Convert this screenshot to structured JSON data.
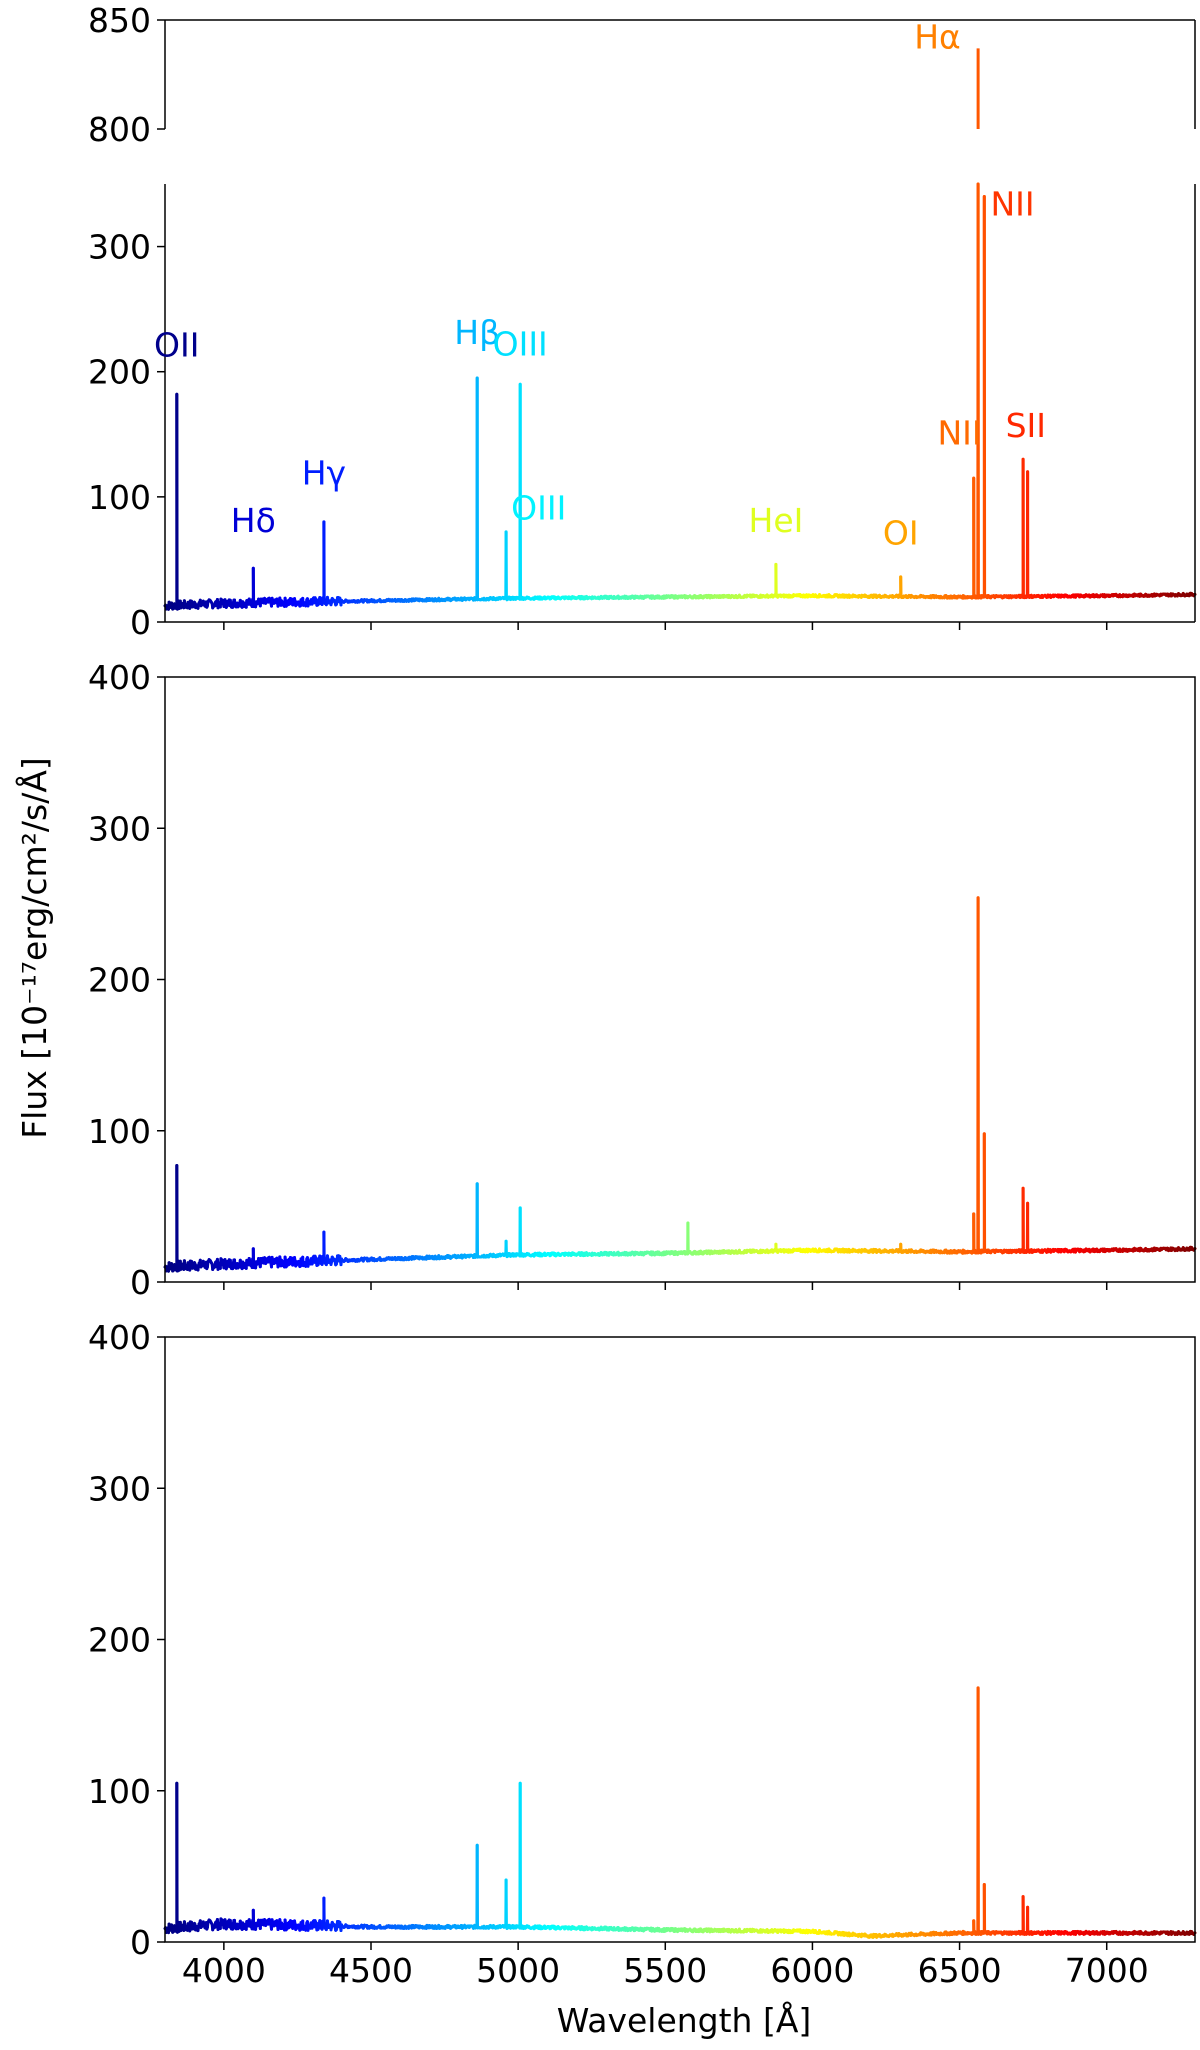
{
  "chart_data": {
    "type": "line",
    "xlabel": "Wavelength [Å]",
    "ylabel": "Flux [10⁻¹⁷erg/cm²/s/Å]",
    "xlim": [
      3800,
      7300
    ],
    "x_ticks": [
      "4000",
      "4500",
      "5000",
      "5500",
      "6000",
      "6500",
      "7000"
    ],
    "color_map": "jet, blue at 3800 Å to red at 7300 Å",
    "panels": [
      {
        "ylim": [
          0,
          850
        ],
        "broken_y_axis": true,
        "y_ticks_lower": [
          "0",
          "100",
          "200",
          "300"
        ],
        "y_ticks_upper": [
          "800",
          "850"
        ],
        "continuum": [
          [
            3800,
            13
          ],
          [
            4000,
            15
          ],
          [
            4500,
            17
          ],
          [
            5000,
            19
          ],
          [
            5500,
            20
          ],
          [
            6000,
            21
          ],
          [
            6500,
            20
          ],
          [
            7000,
            21
          ],
          [
            7300,
            22
          ]
        ],
        "emission_lines": [
          {
            "x": 3840,
            "peak": 182
          },
          {
            "x": 4100,
            "peak": 43
          },
          {
            "x": 4340,
            "peak": 80
          },
          {
            "x": 4861,
            "peak": 195
          },
          {
            "x": 4959,
            "peak": 72
          },
          {
            "x": 5007,
            "peak": 190
          },
          {
            "x": 5876,
            "peak": 46
          },
          {
            "x": 6300,
            "peak": 36
          },
          {
            "x": 6548,
            "peak": 115
          },
          {
            "x": 6563,
            "peak": 837
          },
          {
            "x": 6584,
            "peak": 340
          },
          {
            "x": 6716,
            "peak": 130
          },
          {
            "x": 6731,
            "peak": 120
          }
        ],
        "labels": [
          {
            "text": "OII",
            "x": 3840,
            "y": 212
          },
          {
            "text": "Hδ",
            "x": 4100,
            "y": 72
          },
          {
            "text": "Hγ",
            "x": 4340,
            "y": 110
          },
          {
            "text": "Hβ",
            "x": 4861,
            "y": 222
          },
          {
            "text": "OIII",
            "x": 5007,
            "y": 213
          },
          {
            "text": "OIII",
            "x": 5070,
            "y": 82
          },
          {
            "text": "HeI",
            "x": 5876,
            "y": 72
          },
          {
            "text": "OI",
            "x": 6300,
            "y": 62
          },
          {
            "text": "NII",
            "x": 6500,
            "y": 142
          },
          {
            "text": "Hα",
            "x": 6425,
            "y": 837
          },
          {
            "text": "NII",
            "x": 6680,
            "y": 325
          },
          {
            "text": "SII",
            "x": 6725,
            "y": 148
          }
        ]
      },
      {
        "ylim": [
          0,
          400
        ],
        "y_ticks": [
          "0",
          "100",
          "200",
          "300",
          "400"
        ],
        "continuum": [
          [
            3800,
            10
          ],
          [
            4000,
            12
          ],
          [
            4500,
            15
          ],
          [
            5000,
            18
          ],
          [
            5500,
            19
          ],
          [
            6000,
            21
          ],
          [
            6500,
            20
          ],
          [
            7000,
            21
          ],
          [
            7300,
            22
          ]
        ],
        "emission_lines": [
          {
            "x": 3840,
            "peak": 77
          },
          {
            "x": 4100,
            "peak": 22
          },
          {
            "x": 4340,
            "peak": 33
          },
          {
            "x": 4861,
            "peak": 65
          },
          {
            "x": 4959,
            "peak": 27
          },
          {
            "x": 5007,
            "peak": 49
          },
          {
            "x": 5577,
            "peak": 39
          },
          {
            "x": 5876,
            "peak": 25
          },
          {
            "x": 6300,
            "peak": 25
          },
          {
            "x": 6548,
            "peak": 45
          },
          {
            "x": 6563,
            "peak": 254
          },
          {
            "x": 6584,
            "peak": 98
          },
          {
            "x": 6716,
            "peak": 62
          },
          {
            "x": 6731,
            "peak": 52
          }
        ]
      },
      {
        "ylim": [
          0,
          400
        ],
        "y_ticks": [
          "0",
          "100",
          "200",
          "300",
          "400"
        ],
        "continuum": [
          [
            3800,
            9
          ],
          [
            4000,
            12
          ],
          [
            4300,
            11
          ],
          [
            4500,
            10
          ],
          [
            5000,
            10
          ],
          [
            5500,
            8
          ],
          [
            6000,
            7
          ],
          [
            6200,
            4
          ],
          [
            6500,
            6
          ],
          [
            7000,
            6
          ],
          [
            7300,
            6
          ]
        ],
        "emission_lines": [
          {
            "x": 3840,
            "peak": 105
          },
          {
            "x": 4100,
            "peak": 21
          },
          {
            "x": 4340,
            "peak": 29
          },
          {
            "x": 4861,
            "peak": 64
          },
          {
            "x": 4959,
            "peak": 41
          },
          {
            "x": 5007,
            "peak": 105
          },
          {
            "x": 6548,
            "peak": 14
          },
          {
            "x": 6563,
            "peak": 168
          },
          {
            "x": 6584,
            "peak": 38
          },
          {
            "x": 6716,
            "peak": 30
          },
          {
            "x": 6731,
            "peak": 23
          }
        ]
      }
    ]
  }
}
